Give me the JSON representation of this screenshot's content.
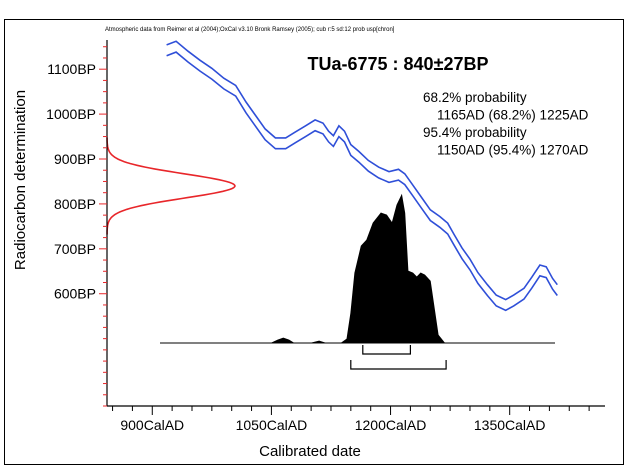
{
  "chart_data": {
    "type": "area",
    "header_note": "Atmospheric data from Reimer et al (2004);OxCal v3.10 Bronk Ramsey (2005); cub r:5 sd:12 prob usp[chron]",
    "title": "TUa-6775 : 840±27BP",
    "xlabel": "Calibrated date",
    "ylabel": "Radiocarbon determination",
    "xlim": [
      843,
      1470
    ],
    "ylim": [
      350,
      1165
    ],
    "x_ticks": [
      {
        "value": 900,
        "label": "900CalAD"
      },
      {
        "value": 1050,
        "label": "1050CalAD"
      },
      {
        "value": 1200,
        "label": "1200CalAD"
      },
      {
        "value": 1350,
        "label": "1350CalAD"
      }
    ],
    "x_minor_step": 25,
    "y_ticks": [
      {
        "value": 1100,
        "label": "1100BP"
      },
      {
        "value": 1000,
        "label": "1000BP"
      },
      {
        "value": 900,
        "label": "900BP"
      },
      {
        "value": 800,
        "label": "800BP"
      },
      {
        "value": 700,
        "label": "700BP"
      },
      {
        "value": 600,
        "label": "600BP"
      }
    ],
    "y_minor_step": 25,
    "probability_text": [
      {
        "text": "68.2% probability",
        "indent": false
      },
      {
        "text": "1165AD (68.2%) 1225AD",
        "indent": true
      },
      {
        "text": "95.4% probability",
        "indent": false
      },
      {
        "text": "1150AD (95.4%) 1270AD",
        "indent": true
      }
    ],
    "ranges": {
      "r68": [
        1165,
        1225
      ],
      "r95": [
        1150,
        1270
      ]
    },
    "measurement": {
      "mean": 840,
      "sd": 27,
      "color": "#e8262a"
    },
    "calibration_curve": {
      "color": "#2f4fd8",
      "band_bp": 12,
      "points": [
        [
          918,
          1142
        ],
        [
          930,
          1150
        ],
        [
          945,
          1128
        ],
        [
          960,
          1108
        ],
        [
          975,
          1090
        ],
        [
          990,
          1068
        ],
        [
          1005,
          1052
        ],
        [
          1018,
          1015
        ],
        [
          1030,
          985
        ],
        [
          1042,
          955
        ],
        [
          1055,
          935
        ],
        [
          1068,
          935
        ],
        [
          1080,
          948
        ],
        [
          1093,
          962
        ],
        [
          1105,
          975
        ],
        [
          1115,
          968
        ],
        [
          1122,
          950
        ],
        [
          1128,
          940
        ],
        [
          1135,
          962
        ],
        [
          1142,
          950
        ],
        [
          1150,
          920
        ],
        [
          1160,
          905
        ],
        [
          1172,
          885
        ],
        [
          1185,
          870
        ],
        [
          1198,
          860
        ],
        [
          1210,
          865
        ],
        [
          1218,
          855
        ],
        [
          1228,
          830
        ],
        [
          1240,
          800
        ],
        [
          1250,
          775
        ],
        [
          1262,
          760
        ],
        [
          1272,
          745
        ],
        [
          1280,
          720
        ],
        [
          1290,
          690
        ],
        [
          1300,
          665
        ],
        [
          1310,
          635
        ],
        [
          1322,
          608
        ],
        [
          1333,
          585
        ],
        [
          1345,
          575
        ],
        [
          1355,
          585
        ],
        [
          1368,
          600
        ],
        [
          1378,
          625
        ],
        [
          1388,
          652
        ],
        [
          1396,
          648
        ],
        [
          1404,
          622
        ],
        [
          1410,
          608
        ]
      ]
    },
    "calibrated_distribution": {
      "color": "#000000",
      "points": [
        [
          1000,
          0
        ],
        [
          1050,
          0
        ],
        [
          1058,
          3
        ],
        [
          1065,
          5
        ],
        [
          1072,
          3
        ],
        [
          1078,
          0
        ],
        [
          1100,
          0
        ],
        [
          1110,
          2
        ],
        [
          1118,
          0
        ],
        [
          1138,
          0
        ],
        [
          1145,
          4
        ],
        [
          1150,
          30
        ],
        [
          1155,
          70
        ],
        [
          1163,
          97
        ],
        [
          1170,
          103
        ],
        [
          1178,
          120
        ],
        [
          1188,
          130
        ],
        [
          1195,
          128
        ],
        [
          1202,
          120
        ],
        [
          1208,
          138
        ],
        [
          1214,
          148
        ],
        [
          1218,
          130
        ],
        [
          1222,
          72
        ],
        [
          1228,
          70
        ],
        [
          1233,
          66
        ],
        [
          1238,
          70
        ],
        [
          1243,
          68
        ],
        [
          1250,
          62
        ],
        [
          1260,
          8
        ],
        [
          1268,
          0
        ],
        [
          1355,
          0
        ],
        [
          1400,
          0
        ]
      ]
    }
  }
}
